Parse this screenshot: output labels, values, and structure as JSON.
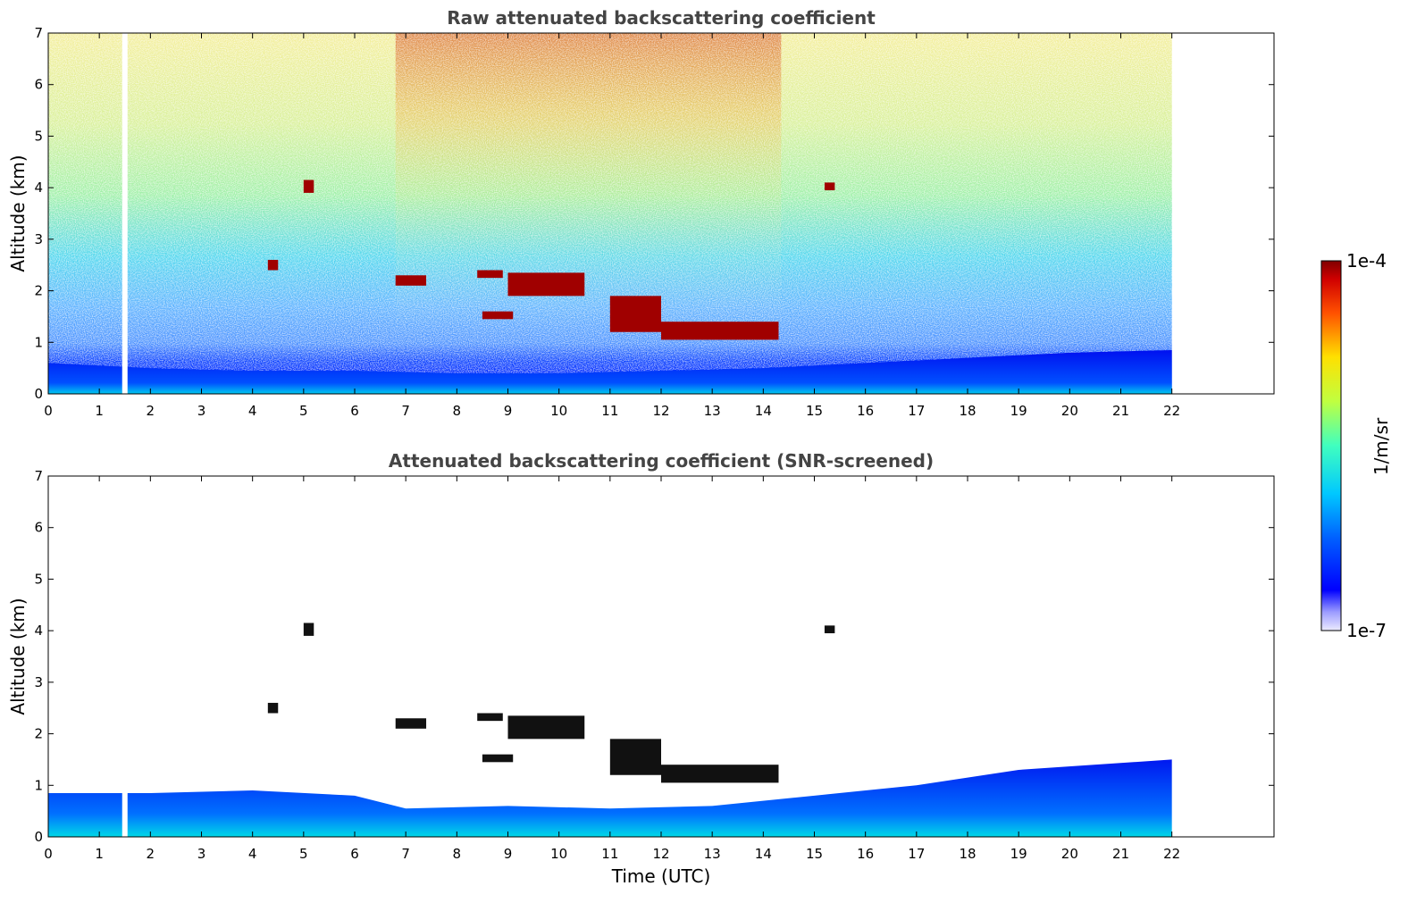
{
  "chart_data": [
    {
      "type": "heatmap",
      "title": "Raw attenuated backscattering coefficient",
      "xlabel": "",
      "ylabel": "Altitude (km)",
      "xlim": [
        0,
        24
      ],
      "ylim": [
        0,
        7
      ],
      "x_ticks": [
        0,
        1,
        2,
        3,
        4,
        5,
        6,
        7,
        8,
        9,
        10,
        11,
        12,
        13,
        14,
        15,
        16,
        17,
        18,
        19,
        20,
        21,
        22
      ],
      "y_ticks": [
        0,
        1,
        2,
        3,
        4,
        5,
        6,
        7
      ],
      "data_extent_x": [
        0,
        22
      ],
      "gap_time": 1.5,
      "grid": false,
      "features": {
        "boundary_layer_top_km": [
          {
            "x": 0,
            "y": 0.6
          },
          {
            "x": 2,
            "y": 0.5
          },
          {
            "x": 4,
            "y": 0.45
          },
          {
            "x": 6,
            "y": 0.45
          },
          {
            "x": 8,
            "y": 0.4
          },
          {
            "x": 10,
            "y": 0.4
          },
          {
            "x": 12,
            "y": 0.45
          },
          {
            "x": 14,
            "y": 0.5
          },
          {
            "x": 16,
            "y": 0.6
          },
          {
            "x": 18,
            "y": 0.7
          },
          {
            "x": 20,
            "y": 0.8
          },
          {
            "x": 22,
            "y": 0.85
          }
        ],
        "cloud_layers": [
          {
            "t0": 4.3,
            "t1": 4.5,
            "z0": 2.4,
            "z1": 2.6
          },
          {
            "t0": 5.0,
            "t1": 5.2,
            "z0": 3.9,
            "z1": 4.15
          },
          {
            "t0": 6.8,
            "t1": 7.4,
            "z0": 2.1,
            "z1": 2.3
          },
          {
            "t0": 8.4,
            "t1": 8.9,
            "z0": 2.25,
            "z1": 2.4
          },
          {
            "t0": 8.5,
            "t1": 9.1,
            "z0": 1.45,
            "z1": 1.6
          },
          {
            "t0": 9.0,
            "t1": 10.5,
            "z0": 1.9,
            "z1": 2.35
          },
          {
            "t0": 11.0,
            "t1": 12.0,
            "z0": 1.2,
            "z1": 1.9
          },
          {
            "t0": 12.0,
            "t1": 14.3,
            "z0": 1.05,
            "z1": 1.4
          },
          {
            "t0": 15.2,
            "t1": 15.4,
            "z0": 3.95,
            "z1": 4.1
          }
        ]
      }
    },
    {
      "type": "heatmap",
      "title": "Attenuated backscattering coefficient (SNR-screened)",
      "xlabel": "Time (UTC)",
      "ylabel": "Altitude (km)",
      "xlim": [
        0,
        24
      ],
      "ylim": [
        0,
        7
      ],
      "x_ticks": [
        0,
        1,
        2,
        3,
        4,
        5,
        6,
        7,
        8,
        9,
        10,
        11,
        12,
        13,
        14,
        15,
        16,
        17,
        18,
        19,
        20,
        21,
        22
      ],
      "y_ticks": [
        0,
        1,
        2,
        3,
        4,
        5,
        6,
        7
      ],
      "data_extent_x": [
        0,
        22
      ],
      "gap_time": 1.5,
      "grid": false,
      "features": {
        "boundary_layer_top_km": [
          {
            "x": 0,
            "y": 0.85
          },
          {
            "x": 2,
            "y": 0.85
          },
          {
            "x": 4,
            "y": 0.9
          },
          {
            "x": 6,
            "y": 0.8
          },
          {
            "x": 7,
            "y": 0.55
          },
          {
            "x": 9,
            "y": 0.6
          },
          {
            "x": 11,
            "y": 0.55
          },
          {
            "x": 13,
            "y": 0.6
          },
          {
            "x": 15,
            "y": 0.8
          },
          {
            "x": 17,
            "y": 1.0
          },
          {
            "x": 19,
            "y": 1.3
          },
          {
            "x": 22,
            "y": 1.5
          }
        ],
        "cloud_layers": [
          {
            "t0": 4.3,
            "t1": 4.5,
            "z0": 2.4,
            "z1": 2.6
          },
          {
            "t0": 5.0,
            "t1": 5.2,
            "z0": 3.9,
            "z1": 4.15
          },
          {
            "t0": 6.8,
            "t1": 7.4,
            "z0": 2.1,
            "z1": 2.3
          },
          {
            "t0": 8.4,
            "t1": 8.9,
            "z0": 2.25,
            "z1": 2.4
          },
          {
            "t0": 8.5,
            "t1": 9.1,
            "z0": 1.45,
            "z1": 1.6
          },
          {
            "t0": 9.0,
            "t1": 10.5,
            "z0": 1.9,
            "z1": 2.35
          },
          {
            "t0": 11.0,
            "t1": 12.0,
            "z0": 1.2,
            "z1": 1.9
          },
          {
            "t0": 12.0,
            "t1": 14.3,
            "z0": 1.05,
            "z1": 1.4
          },
          {
            "t0": 15.2,
            "t1": 15.4,
            "z0": 3.95,
            "z1": 4.1
          }
        ]
      }
    }
  ],
  "colorbar": {
    "label": "1/m/sr",
    "max_label": "1e-4",
    "min_label": "1e-7",
    "colormap": "jet",
    "scale": "log"
  }
}
